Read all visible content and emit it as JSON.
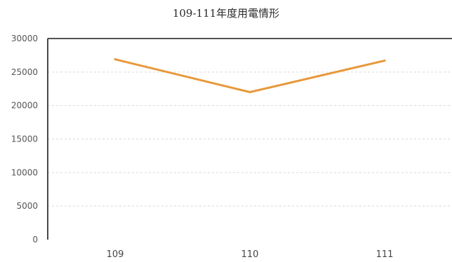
{
  "chart_data": {
    "type": "line",
    "title": "109-111年度用電情形",
    "xlabel": "",
    "ylabel": "",
    "categories": [
      "109",
      "110",
      "111"
    ],
    "series": [
      {
        "values": [
          26900,
          22000,
          26700
        ]
      }
    ],
    "ylim": [
      0,
      30000
    ],
    "yticks": [
      0,
      5000,
      10000,
      15000,
      20000,
      25000,
      30000
    ],
    "grid": true,
    "legend": "none",
    "colors": {
      "line": "#e8983a",
      "axis": "#1a1a1a",
      "grid": "#d9d9d9"
    }
  }
}
